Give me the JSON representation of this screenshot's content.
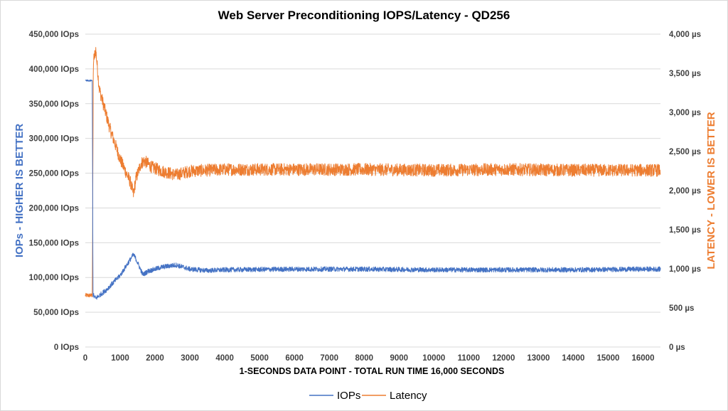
{
  "chart_data": {
    "type": "line",
    "title": "Web Server Preconditioning IOPS/Latency - QD256",
    "xlabel": "1-SECONDS DATA POINT - TOTAL RUN TIME 16,000 SECONDS",
    "ylabel_left": "IOPs - HIGHER IS BETTER",
    "ylabel_right": "LATENCY - LOWER IS BETTER",
    "xlim": [
      0,
      16500
    ],
    "ylim_left": [
      0,
      450000
    ],
    "ylim_right": [
      0,
      4000
    ],
    "x_ticks": [
      "0",
      "1000",
      "2000",
      "3000",
      "4000",
      "5000",
      "6000",
      "7000",
      "8000",
      "9000",
      "10000",
      "11000",
      "12000",
      "13000",
      "14000",
      "15000",
      "16000"
    ],
    "y_left_ticks": [
      "0 IOps",
      "50,000 IOps",
      "100,000 IOps",
      "150,000 IOps",
      "200,000 IOps",
      "250,000 IOps",
      "300,000 IOps",
      "350,000 IOps",
      "400,000 IOps",
      "450,000 IOps"
    ],
    "y_right_ticks": [
      "0 µs",
      "500 µs",
      "1,000 µs",
      "1,500 µs",
      "2,000 µs",
      "2,500 µs",
      "3,000 µs",
      "3,500 µs",
      "4,000 µs"
    ],
    "grid": true,
    "legend_position": "bottom",
    "series": [
      {
        "name": "IOPs",
        "axis": "left",
        "color": "#4472c4",
        "x": [
          0,
          200,
          220,
          300,
          600,
          1000,
          1380,
          1450,
          1650,
          1800,
          2200,
          2600,
          3000,
          3500,
          4000,
          6000,
          8000,
          10000,
          12000,
          14000,
          16000,
          16500
        ],
        "y": [
          383000,
          383000,
          75000,
          70000,
          82000,
          103000,
          133000,
          127000,
          104000,
          109000,
          115000,
          118000,
          112000,
          110000,
          111000,
          112000,
          112000,
          111000,
          111000,
          111000,
          112000,
          112000
        ],
        "noise": 3500
      },
      {
        "name": "Latency",
        "axis": "right",
        "color": "#ed7d31",
        "x": [
          0,
          200,
          210,
          230,
          300,
          400,
          700,
          1000,
          1300,
          1380,
          1450,
          1600,
          1700,
          1900,
          2200,
          2600,
          3000,
          4000,
          6000,
          8000,
          10000,
          12000,
          14000,
          16000,
          16500
        ],
        "y": [
          660,
          660,
          1550,
          3650,
          3800,
          3300,
          2800,
          2400,
          2100,
          1950,
          2150,
          2350,
          2380,
          2300,
          2250,
          2200,
          2250,
          2270,
          2270,
          2270,
          2260,
          2270,
          2260,
          2260,
          2260
        ],
        "noise": 80
      }
    ]
  }
}
